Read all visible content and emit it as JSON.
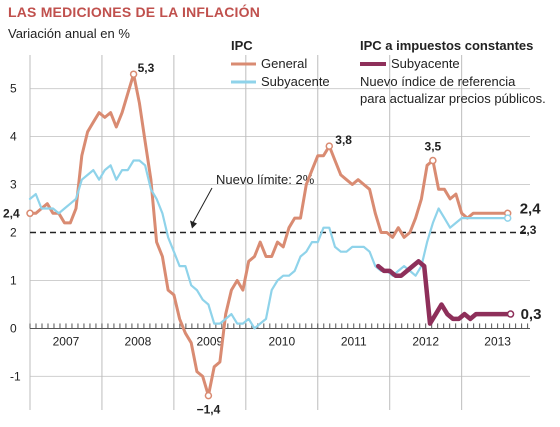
{
  "chart_data": {
    "type": "line",
    "title": "LAS MEDICIONES DE LA INFLACIÓN",
    "subtitle": "Variación anual en %",
    "ylim": [
      -1.7,
      5.7
    ],
    "yticks": [
      "5",
      "4",
      "3",
      "2",
      "1",
      "0",
      "-1"
    ],
    "ytick_values": [
      5,
      4,
      3,
      2,
      1,
      0,
      -1
    ],
    "x_start_year": 2006.6,
    "x_end_year": 2013.55,
    "year_labels": [
      "2007",
      "2008",
      "2009",
      "2010",
      "2011",
      "2012",
      "2013"
    ],
    "reference_line": {
      "value": 2,
      "label": "Nuevo límite: 2%"
    },
    "legend": {
      "group1_title": "IPC",
      "group1_items": [
        "General",
        "Subyacente"
      ],
      "group2_title": "IPC a impuestos constantes",
      "group2_items": [
        "Subyacente"
      ],
      "group2_note_lines": [
        "Nuevo índice de referencia",
        "para actualizar precios públicos."
      ]
    },
    "series": [
      {
        "name": "General",
        "color": "#d98b72",
        "x": [
          2006.6,
          2006.68,
          2006.76,
          2006.84,
          2006.92,
          2007.0,
          2007.08,
          2007.16,
          2007.24,
          2007.32,
          2007.4,
          2007.48,
          2007.56,
          2007.64,
          2007.72,
          2007.8,
          2007.88,
          2007.96,
          2008.04,
          2008.12,
          2008.2,
          2008.28,
          2008.36,
          2008.44,
          2008.52,
          2008.6,
          2008.68,
          2008.76,
          2008.84,
          2008.92,
          2009.0,
          2009.08,
          2009.16,
          2009.24,
          2009.32,
          2009.4,
          2009.48,
          2009.56,
          2009.64,
          2009.72,
          2009.8,
          2009.88,
          2009.96,
          2010.04,
          2010.12,
          2010.2,
          2010.28,
          2010.36,
          2010.44,
          2010.52,
          2010.6,
          2010.68,
          2010.76,
          2010.84,
          2010.92,
          2011.0,
          2011.08,
          2011.16,
          2011.24,
          2011.32,
          2011.4,
          2011.48,
          2011.56,
          2011.64,
          2011.72,
          2011.8,
          2011.88,
          2011.96,
          2012.04,
          2012.12,
          2012.2,
          2012.28,
          2012.36,
          2012.44,
          2012.52,
          2012.6,
          2012.68,
          2012.76,
          2012.84,
          2012.92,
          2013.0,
          2013.08,
          2013.16,
          2013.24
        ],
        "values": [
          2.4,
          2.4,
          2.5,
          2.6,
          2.4,
          2.4,
          2.2,
          2.2,
          2.5,
          3.6,
          4.1,
          4.3,
          4.5,
          4.4,
          4.5,
          4.2,
          4.5,
          4.9,
          5.3,
          4.7,
          3.9,
          3.1,
          1.8,
          1.5,
          0.8,
          0.7,
          0.2,
          -0.1,
          -0.3,
          -0.9,
          -1.0,
          -1.4,
          -0.8,
          -0.7,
          0.3,
          0.8,
          1.0,
          0.8,
          1.4,
          1.5,
          1.8,
          1.5,
          1.5,
          1.8,
          1.7,
          2.1,
          2.3,
          2.3,
          3.0,
          3.3,
          3.6,
          3.6,
          3.8,
          3.5,
          3.2,
          3.1,
          3.0,
          3.1,
          3.0,
          2.9,
          2.4,
          2.0,
          2.0,
          1.9,
          2.1,
          1.9,
          2.0,
          2.3,
          2.7,
          3.4,
          3.5,
          2.9,
          2.9,
          2.7,
          2.8,
          2.4,
          2.3,
          2.4,
          2.4,
          2.4,
          2.4,
          2.4,
          2.4,
          2.4
        ]
      },
      {
        "name": "Subyacente",
        "color": "#8fd3ea",
        "x": [
          2006.6,
          2006.68,
          2006.76,
          2006.84,
          2006.92,
          2007.0,
          2007.08,
          2007.16,
          2007.24,
          2007.32,
          2007.4,
          2007.48,
          2007.56,
          2007.64,
          2007.72,
          2007.8,
          2007.88,
          2007.96,
          2008.04,
          2008.12,
          2008.2,
          2008.28,
          2008.36,
          2008.44,
          2008.52,
          2008.6,
          2008.68,
          2008.76,
          2008.84,
          2008.92,
          2009.0,
          2009.08,
          2009.16,
          2009.24,
          2009.32,
          2009.4,
          2009.48,
          2009.56,
          2009.64,
          2009.72,
          2009.8,
          2009.88,
          2009.96,
          2010.04,
          2010.12,
          2010.2,
          2010.28,
          2010.36,
          2010.44,
          2010.52,
          2010.6,
          2010.68,
          2010.76,
          2010.84,
          2010.92,
          2011.0,
          2011.08,
          2011.16,
          2011.24,
          2011.32,
          2011.4,
          2011.48,
          2011.56,
          2011.64,
          2011.72,
          2011.8,
          2011.88,
          2011.96,
          2012.04,
          2012.12,
          2012.2,
          2012.28,
          2012.36,
          2012.44,
          2012.52,
          2012.6,
          2012.68,
          2012.76,
          2012.84,
          2012.92,
          2013.0,
          2013.08,
          2013.16,
          2013.24
        ],
        "values": [
          2.7,
          2.8,
          2.5,
          2.5,
          2.5,
          2.4,
          2.5,
          2.6,
          2.7,
          3.1,
          3.2,
          3.3,
          3.1,
          3.3,
          3.4,
          3.1,
          3.3,
          3.3,
          3.5,
          3.5,
          3.4,
          2.9,
          2.7,
          2.4,
          1.9,
          1.6,
          1.3,
          1.3,
          0.9,
          0.8,
          0.6,
          0.5,
          0.1,
          0.1,
          0.2,
          0.3,
          0.1,
          0.1,
          0.2,
          0.0,
          0.1,
          0.2,
          0.8,
          1.0,
          1.1,
          1.1,
          1.2,
          1.5,
          1.6,
          1.8,
          1.8,
          2.1,
          2.1,
          1.7,
          1.6,
          1.6,
          1.7,
          1.7,
          1.7,
          1.6,
          1.3,
          1.2,
          1.2,
          1.1,
          1.2,
          1.3,
          1.2,
          1.1,
          1.3,
          1.8,
          2.2,
          2.5,
          2.3,
          2.1,
          2.2,
          2.3,
          2.3,
          2.3,
          2.3,
          2.3,
          2.3,
          2.3,
          2.3,
          2.3
        ]
      },
      {
        "name": "Subyacente",
        "color": "#8e2f5a",
        "x": [
          2011.44,
          2011.52,
          2011.6,
          2011.68,
          2011.76,
          2011.84,
          2011.92,
          2012.0,
          2012.08,
          2012.16,
          2012.24,
          2012.32,
          2012.4,
          2012.48,
          2012.56,
          2012.64,
          2012.72,
          2012.8,
          2012.88,
          2012.96,
          2013.04,
          2013.12,
          2013.2,
          2013.28
        ],
        "values": [
          1.3,
          1.2,
          1.2,
          1.1,
          1.1,
          1.2,
          1.3,
          1.4,
          1.3,
          0.1,
          0.3,
          0.5,
          0.3,
          0.2,
          0.2,
          0.3,
          0.2,
          0.3,
          0.3,
          0.3,
          0.3,
          0.3,
          0.3,
          0.3
        ]
      }
    ],
    "annotations": [
      {
        "label": "5,3",
        "x": 2008.04,
        "value": 5.3
      },
      {
        "label": "−1,4",
        "x": 2009.08,
        "value": -1.4
      },
      {
        "label": "3,8",
        "x": 2010.76,
        "value": 3.8
      },
      {
        "label": "3,5",
        "x": 2012.2,
        "value": 3.5
      },
      {
        "label": "2,4",
        "x": 2006.6,
        "value": 2.4
      },
      {
        "label": "2,4",
        "x": 2013.24,
        "value": 2.4
      },
      {
        "label": "2,3",
        "x": 2013.24,
        "value": 2.3
      },
      {
        "label": "0,3",
        "x": 2013.28,
        "value": 0.3
      }
    ]
  }
}
